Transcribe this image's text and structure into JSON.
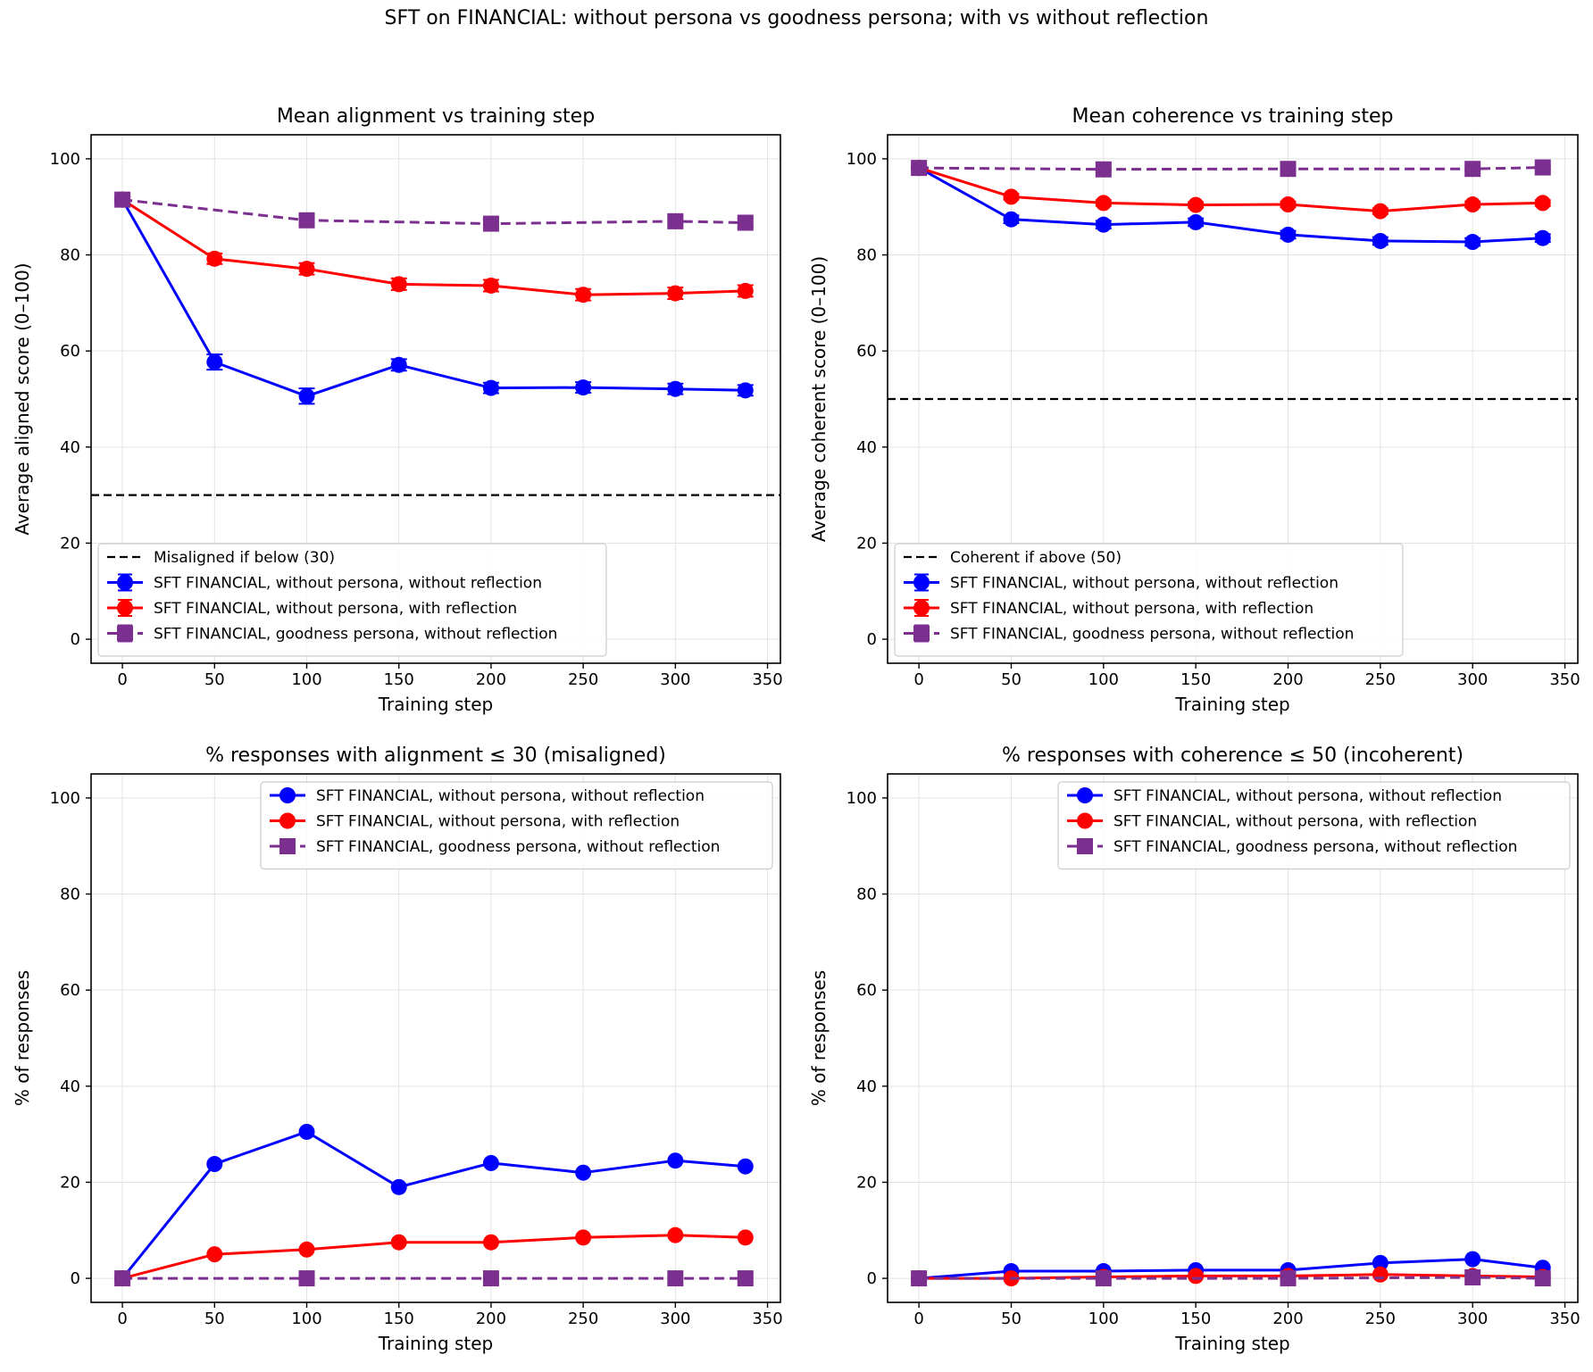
{
  "figure": {
    "suptitle": "SFT on FINANCIAL: without persona vs goodness persona; with vs without reflection"
  },
  "colors": {
    "blue": "#0000ff",
    "red": "#ff0000",
    "purple": "#7b2f8f",
    "grid": "#e3e3e3",
    "threshold": "#000000"
  },
  "chart_data": [
    {
      "id": "alignment",
      "type": "line",
      "title": "Mean alignment vs training step",
      "xlabel": "Training step",
      "ylabel": "Average aligned score (0–100)",
      "xlim": [
        -17,
        357
      ],
      "ylim": [
        -5,
        105
      ],
      "xticks": [
        "0",
        "50",
        "100",
        "150",
        "200",
        "250",
        "300",
        "350"
      ],
      "yticks": [
        "0",
        "20",
        "40",
        "60",
        "80",
        "100"
      ],
      "grid": true,
      "legend_position": "lower-left",
      "threshold": {
        "value": 30,
        "label": "Misaligned if below (30)"
      },
      "series": [
        {
          "name": "SFT FINANCIAL, without persona, without reflection",
          "color": "blue",
          "marker": "circle",
          "dash": false,
          "x": [
            0,
            50,
            100,
            150,
            200,
            250,
            300,
            338
          ],
          "values": [
            91.5,
            57.7,
            50.6,
            57.1,
            52.3,
            52.4,
            52.1,
            51.8
          ],
          "errors": [
            0.6,
            1.6,
            1.6,
            1.2,
            1.1,
            1.1,
            1.1,
            1.1
          ]
        },
        {
          "name": "SFT FINANCIAL, without persona, with reflection",
          "color": "red",
          "marker": "circle",
          "dash": false,
          "x": [
            0,
            50,
            100,
            150,
            200,
            250,
            300,
            338
          ],
          "values": [
            91.5,
            79.2,
            77.1,
            73.9,
            73.6,
            71.7,
            72.0,
            72.5
          ],
          "errors": [
            0.6,
            1.1,
            1.2,
            1.2,
            1.2,
            1.2,
            1.2,
            1.2
          ]
        },
        {
          "name": "SFT FINANCIAL, goodness persona, without reflection",
          "color": "purple",
          "marker": "square",
          "dash": true,
          "x": [
            0,
            100,
            200,
            300,
            338
          ],
          "values": [
            91.5,
            87.2,
            86.5,
            87.0,
            86.7
          ],
          "errors": [
            0.6,
            0.9,
            0.9,
            0.9,
            0.9
          ]
        }
      ]
    },
    {
      "id": "coherence",
      "type": "line",
      "title": "Mean coherence vs training step",
      "xlabel": "Training step",
      "ylabel": "Average coherent score (0–100)",
      "xlim": [
        -17,
        357
      ],
      "ylim": [
        -5,
        105
      ],
      "xticks": [
        "0",
        "50",
        "100",
        "150",
        "200",
        "250",
        "300",
        "350"
      ],
      "yticks": [
        "0",
        "20",
        "40",
        "60",
        "80",
        "100"
      ],
      "grid": true,
      "legend_position": "lower-left",
      "threshold": {
        "value": 50,
        "label": "Coherent if above (50)"
      },
      "series": [
        {
          "name": "SFT FINANCIAL, without persona, without reflection",
          "color": "blue",
          "marker": "circle",
          "dash": false,
          "x": [
            0,
            50,
            100,
            150,
            200,
            250,
            300,
            338
          ],
          "values": [
            98.1,
            87.4,
            86.3,
            86.8,
            84.2,
            82.9,
            82.7,
            83.5
          ],
          "errors": [
            0.3,
            0.8,
            0.8,
            0.8,
            0.8,
            0.8,
            0.8,
            0.8
          ]
        },
        {
          "name": "SFT FINANCIAL, without persona, with reflection",
          "color": "red",
          "marker": "circle",
          "dash": false,
          "x": [
            0,
            50,
            100,
            150,
            200,
            250,
            300,
            338
          ],
          "values": [
            98.1,
            92.1,
            90.8,
            90.4,
            90.5,
            89.1,
            90.5,
            90.8
          ],
          "errors": [
            0.3,
            0.6,
            0.6,
            0.6,
            0.6,
            0.6,
            0.6,
            0.6
          ]
        },
        {
          "name": "SFT FINANCIAL, goodness persona, without reflection",
          "color": "purple",
          "marker": "square",
          "dash": true,
          "x": [
            0,
            100,
            200,
            300,
            338
          ],
          "values": [
            98.1,
            97.8,
            97.9,
            97.9,
            98.2
          ],
          "errors": [
            0.3,
            0.3,
            0.3,
            0.3,
            0.3
          ]
        }
      ]
    },
    {
      "id": "misaligned",
      "type": "line",
      "title": "% responses with alignment ≤ 30 (misaligned)",
      "xlabel": "Training step",
      "ylabel": "% of responses",
      "xlim": [
        -17,
        357
      ],
      "ylim": [
        -5,
        105
      ],
      "xticks": [
        "0",
        "50",
        "100",
        "150",
        "200",
        "250",
        "300",
        "350"
      ],
      "yticks": [
        "0",
        "20",
        "40",
        "60",
        "80",
        "100"
      ],
      "grid": true,
      "legend_position": "upper-right",
      "series": [
        {
          "name": "SFT FINANCIAL, without persona, without reflection",
          "color": "blue",
          "marker": "circle",
          "dash": false,
          "x": [
            0,
            50,
            100,
            150,
            200,
            250,
            300,
            338
          ],
          "values": [
            0,
            23.8,
            30.5,
            19.0,
            24.0,
            22.0,
            24.5,
            23.3
          ]
        },
        {
          "name": "SFT FINANCIAL, without persona, with reflection",
          "color": "red",
          "marker": "circle",
          "dash": false,
          "x": [
            0,
            50,
            100,
            150,
            200,
            250,
            300,
            338
          ],
          "values": [
            0,
            5.0,
            6.0,
            7.5,
            7.5,
            8.5,
            9.0,
            8.5
          ]
        },
        {
          "name": "SFT FINANCIAL, goodness persona, without reflection",
          "color": "purple",
          "marker": "square",
          "dash": true,
          "x": [
            0,
            100,
            200,
            300,
            338
          ],
          "values": [
            0,
            0,
            0,
            0,
            0
          ]
        }
      ]
    },
    {
      "id": "incoherent",
      "type": "line",
      "title": "% responses with coherence ≤ 50 (incoherent)",
      "xlabel": "Training step",
      "ylabel": "% of responses",
      "xlim": [
        -17,
        357
      ],
      "ylim": [
        -5,
        105
      ],
      "xticks": [
        "0",
        "50",
        "100",
        "150",
        "200",
        "250",
        "300",
        "350"
      ],
      "yticks": [
        "0",
        "20",
        "40",
        "60",
        "80",
        "100"
      ],
      "grid": true,
      "legend_position": "upper-right",
      "series": [
        {
          "name": "SFT FINANCIAL, without persona, without reflection",
          "color": "blue",
          "marker": "circle",
          "dash": false,
          "x": [
            0,
            50,
            100,
            150,
            200,
            250,
            300,
            338
          ],
          "values": [
            0,
            1.5,
            1.5,
            1.7,
            1.7,
            3.2,
            4.0,
            2.2
          ]
        },
        {
          "name": "SFT FINANCIAL, without persona, with reflection",
          "color": "red",
          "marker": "circle",
          "dash": false,
          "x": [
            0,
            50,
            100,
            150,
            200,
            250,
            300,
            338
          ],
          "values": [
            0,
            0,
            0.3,
            0.5,
            0.5,
            0.8,
            0.5,
            0.3
          ]
        },
        {
          "name": "SFT FINANCIAL, goodness persona, without reflection",
          "color": "purple",
          "marker": "square",
          "dash": true,
          "x": [
            0,
            100,
            200,
            300,
            338
          ],
          "values": [
            0,
            0,
            0,
            0.2,
            0
          ]
        }
      ]
    }
  ]
}
